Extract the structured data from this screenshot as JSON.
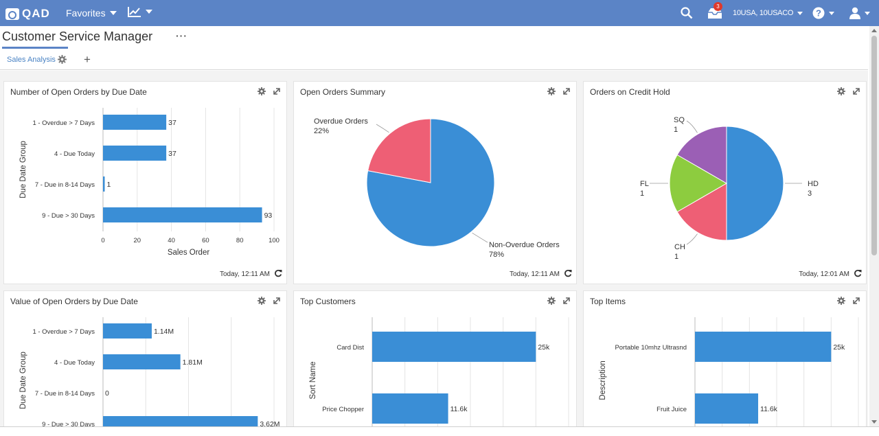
{
  "app": {
    "logo_text": "QAD",
    "favorites_label": "Favorites",
    "entity_label": "10USA, 10USACO",
    "notification_count": "3"
  },
  "page": {
    "title": "Customer Service Manager",
    "more_label": "···"
  },
  "tabs": [
    {
      "label": "Sales Analysis"
    }
  ],
  "colors": {
    "topbar": "#5b84c6",
    "bar": "#3a8ed6",
    "red": "#ee5f75",
    "green": "#8dcc3f",
    "purple": "#9b5fb5"
  },
  "panels": {
    "open_orders_by_due": {
      "title": "Number of Open Orders by Due Date",
      "footer": "Today, 12:11 AM",
      "chart_data": {
        "type": "bar",
        "orientation": "horizontal",
        "categories": [
          "1 - Overdue > 7 Days",
          "4 - Due Today",
          "7 - Due in 8-14 Days",
          "9 - Due > 30 Days"
        ],
        "values": [
          37,
          37,
          1,
          93
        ],
        "data_labels": [
          "37",
          "37",
          "1",
          "93"
        ],
        "xticks": [
          "0",
          "20",
          "40",
          "60",
          "80",
          "100"
        ],
        "xlim": [
          0,
          100
        ],
        "xlabel": "Sales Order",
        "ylabel": "Due Date Group"
      }
    },
    "open_orders_summary": {
      "title": "Open Orders Summary",
      "footer": "Today, 12:11 AM",
      "chart_data": {
        "type": "pie",
        "slices": [
          {
            "label": "Non-Overdue Orders",
            "value": 78,
            "value_label": "78%"
          },
          {
            "label": "Overdue Orders",
            "value": 22,
            "value_label": "22%"
          }
        ]
      }
    },
    "credit_hold": {
      "title": "Orders on Credit Hold",
      "footer": "Today, 12:01 AM",
      "chart_data": {
        "type": "pie",
        "slices": [
          {
            "label": "HD",
            "value": 3,
            "value_label": "3"
          },
          {
            "label": "CH",
            "value": 1,
            "value_label": "1"
          },
          {
            "label": "FL",
            "value": 1,
            "value_label": "1"
          },
          {
            "label": "SQ",
            "value": 1,
            "value_label": "1"
          }
        ]
      }
    },
    "value_by_due": {
      "title": "Value of Open Orders by Due Date",
      "chart_data": {
        "type": "bar",
        "orientation": "horizontal",
        "categories": [
          "1 - Overdue > 7 Days",
          "4 - Due Today",
          "7 - Due in 8-14 Days",
          "9 - Due > 30 Days"
        ],
        "values": [
          1.14,
          1.81,
          0,
          3.62
        ],
        "data_labels": [
          "1.14M",
          "1.81M",
          "0",
          "3.62M"
        ],
        "xlim": [
          0,
          4
        ],
        "ylabel": "Due Date Group"
      }
    },
    "top_customers": {
      "title": "Top Customers",
      "chart_data": {
        "type": "bar",
        "orientation": "horizontal",
        "categories": [
          "Card Dist",
          "Price Chopper"
        ],
        "values": [
          25,
          11.6
        ],
        "data_labels": [
          "25k",
          "11.6k"
        ],
        "xlim": [
          0,
          30
        ],
        "ylabel": "Sort Name"
      }
    },
    "top_items": {
      "title": "Top Items",
      "chart_data": {
        "type": "bar",
        "orientation": "horizontal",
        "categories": [
          "Portable 10mhz Ultrasnd",
          "Fruit Juice"
        ],
        "values": [
          25,
          11.6
        ],
        "data_labels": [
          "25k",
          "11.6k"
        ],
        "xlim": [
          0,
          30
        ],
        "ylabel": "Description"
      }
    }
  }
}
